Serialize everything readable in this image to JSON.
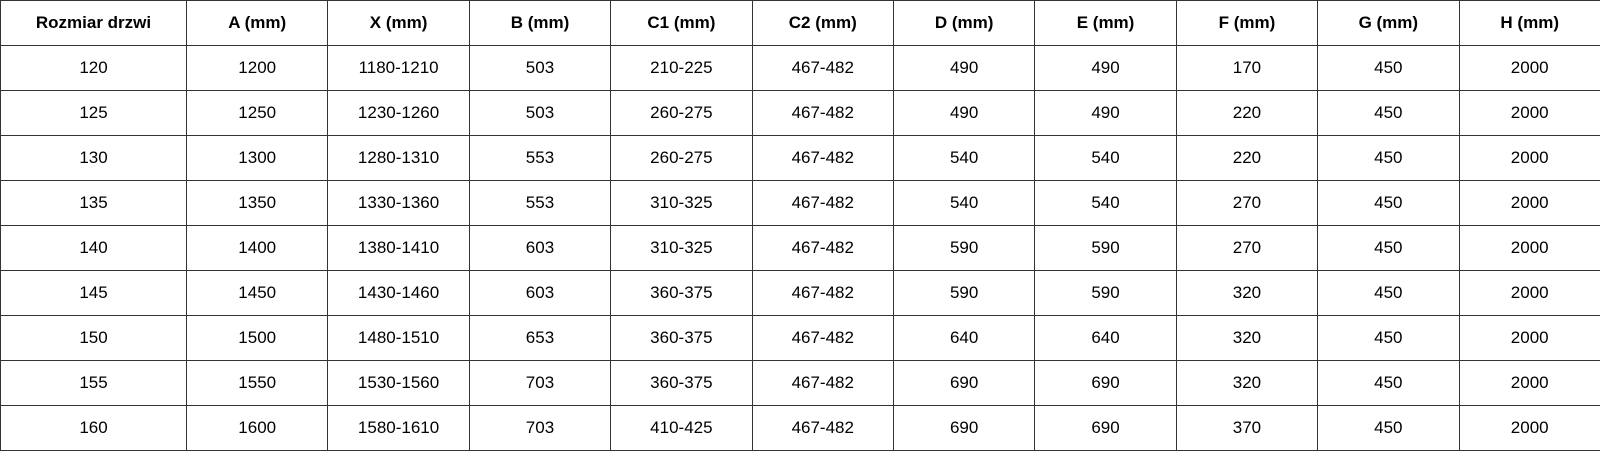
{
  "headers": [
    "Rozmiar drzwi",
    "A (mm)",
    "X (mm)",
    "B (mm)",
    "C1 (mm)",
    "C2 (mm)",
    "D (mm)",
    "E (mm)",
    "F (mm)",
    "G (mm)",
    "H (mm)"
  ],
  "rows": [
    [
      "120",
      "1200",
      "1180-1210",
      "503",
      "210-225",
      "467-482",
      "490",
      "490",
      "170",
      "450",
      "2000"
    ],
    [
      "125",
      "1250",
      "1230-1260",
      "503",
      "260-275",
      "467-482",
      "490",
      "490",
      "220",
      "450",
      "2000"
    ],
    [
      "130",
      "1300",
      "1280-1310",
      "553",
      "260-275",
      "467-482",
      "540",
      "540",
      "220",
      "450",
      "2000"
    ],
    [
      "135",
      "1350",
      "1330-1360",
      "553",
      "310-325",
      "467-482",
      "540",
      "540",
      "270",
      "450",
      "2000"
    ],
    [
      "140",
      "1400",
      "1380-1410",
      "603",
      "310-325",
      "467-482",
      "590",
      "590",
      "270",
      "450",
      "2000"
    ],
    [
      "145",
      "1450",
      "1430-1460",
      "603",
      "360-375",
      "467-482",
      "590",
      "590",
      "320",
      "450",
      "2000"
    ],
    [
      "150",
      "1500",
      "1480-1510",
      "653",
      "360-375",
      "467-482",
      "640",
      "640",
      "320",
      "450",
      "2000"
    ],
    [
      "155",
      "1550",
      "1530-1560",
      "703",
      "360-375",
      "467-482",
      "690",
      "690",
      "320",
      "450",
      "2000"
    ],
    [
      "160",
      "1600",
      "1580-1610",
      "703",
      "410-425",
      "467-482",
      "690",
      "690",
      "370",
      "450",
      "2000"
    ]
  ]
}
